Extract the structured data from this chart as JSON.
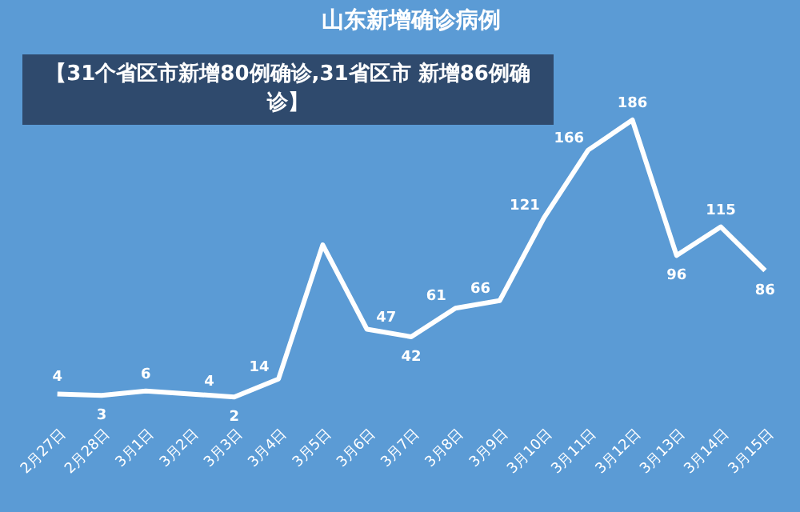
{
  "chart_data": {
    "type": "line",
    "title": "山东新增确诊病例",
    "categories": [
      "2月27日",
      "2月28日",
      "3月1日",
      "3月2日",
      "3月3日",
      "3月4日",
      "3月5日",
      "3月6日",
      "3月7日",
      "3月8日",
      "3月9日",
      "3月10日",
      "3月11日",
      "3月12日",
      "3月13日",
      "3月14日",
      "3月15日"
    ],
    "series": [
      {
        "color": "#ffffff",
        "values": [
          4,
          3,
          6,
          4,
          2,
          14,
          103,
          47,
          42,
          61,
          66,
          121,
          166,
          186,
          96,
          115,
          86
        ],
        "value_labels": [
          "4",
          "3",
          "6",
          "4",
          "2",
          "14",
          null,
          "47",
          "42",
          "61",
          "66",
          "121",
          "166",
          "186",
          "96",
          "115",
          "86"
        ]
      }
    ],
    "annotations": [
      "【31个省区市新增80例确诊,31省区市 新增86例确诊】"
    ],
    "grid": false,
    "legend": false,
    "marker": "none",
    "line_style": "solid"
  }
}
